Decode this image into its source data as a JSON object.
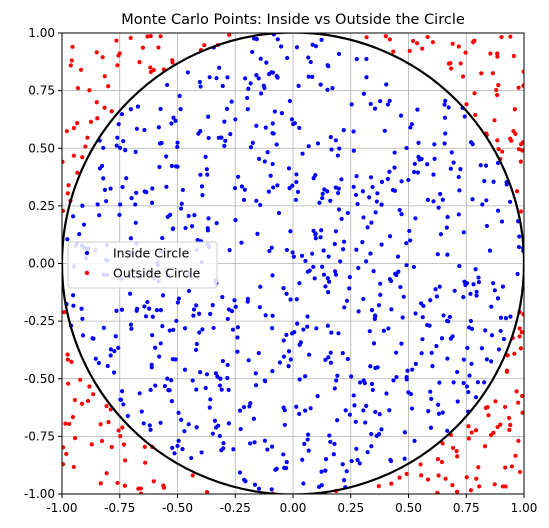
{
  "chart_data": {
    "type": "scatter",
    "title": "Monte Carlo Points: Inside vs Outside the Circle",
    "xlabel": "",
    "ylabel": "",
    "xlim": [
      -1.0,
      1.0
    ],
    "ylim": [
      -1.0,
      1.0
    ],
    "xticks": [
      "-1.00",
      "-0.75",
      "-0.50",
      "-0.25",
      "0.00",
      "0.25",
      "0.50",
      "0.75",
      "1.00"
    ],
    "yticks": [
      "-1.00",
      "-0.75",
      "-0.50",
      "-0.25",
      "0.00",
      "0.25",
      "0.50",
      "0.75",
      "1.00"
    ],
    "grid": true,
    "aspect": "equal",
    "legend_position": "center-left",
    "circle": {
      "center": [
        0,
        0
      ],
      "radius": 1,
      "color": "#000000"
    },
    "series": [
      {
        "name": "Inside Circle",
        "color": "#0000ff",
        "count": 785
      },
      {
        "name": "Outside Circle",
        "color": "#ff0000",
        "count": 215
      }
    ]
  }
}
